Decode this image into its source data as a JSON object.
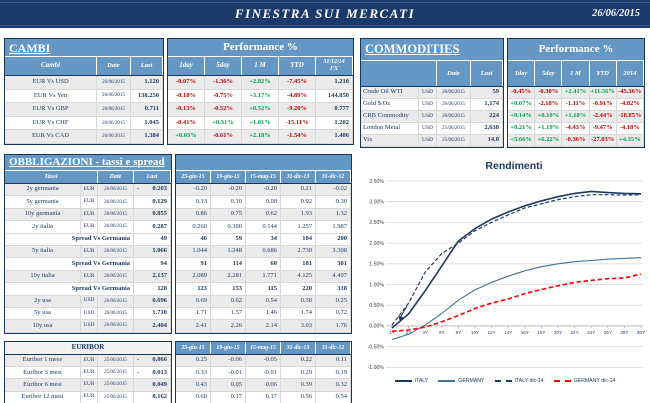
{
  "header": {
    "title": "FINESTRA SUI MERCATI",
    "date": "26/06/2015"
  },
  "colors": {
    "bar_navy": "#1B3A6B",
    "header_blue": "#6497C4",
    "positive": "#00A14E",
    "negative": "#C00000",
    "text_navy": "#1F3864"
  },
  "cambi": {
    "title": "CAMBI",
    "performance_title": "Performance  %",
    "columns": [
      "Cambi",
      "Date",
      "Last",
      "1day",
      "5day",
      "1 M",
      "YTD",
      "31/12/14\nFX"
    ],
    "rows": [
      {
        "name": "EUR Vs USD",
        "date": "26/06/2015",
        "last": "1.120",
        "perf": [
          "-0.07%",
          "-1.36%",
          "+2.82%",
          "-7.45%"
        ],
        "fx": "1.210"
      },
      {
        "name": "EUR Vs Yen",
        "date": "26/06/2015",
        "last": "138.250",
        "perf": [
          "-0.18%",
          "-0.75%",
          "+3.17%",
          "-4.89%"
        ],
        "fx": "144.850"
      },
      {
        "name": "EUR Vs GBP",
        "date": "26/06/2015",
        "last": "0.711",
        "perf": [
          "-0.13%",
          "-0.52%",
          "+0.52%",
          "-9.20%"
        ],
        "fx": "0.777"
      },
      {
        "name": "EUR Vs CHF",
        "date": "26/06/2015",
        "last": "1.045",
        "perf": [
          "-0.41%",
          "+0.31%",
          "+1.01%",
          "-15.11%"
        ],
        "fx": "1.202"
      },
      {
        "name": "EUR Vs CAD",
        "date": "26/06/2015",
        "last": "1.384",
        "perf": [
          "+0.03%",
          "-0.61%",
          "+2.18%",
          "-1.54%"
        ],
        "fx": "1.406"
      }
    ]
  },
  "commodities": {
    "title": "COMMODITIES",
    "performance_title": "Performance  %",
    "columns": [
      "",
      "Date",
      "Last",
      "1day",
      "5day",
      "1 M",
      "YTD",
      "2014"
    ],
    "rows": [
      {
        "name": "Crude Oil WTI",
        "ccy": "USD",
        "date": "26/06/2015",
        "last": "59",
        "perf": [
          "-0.45%",
          "-0.30%",
          "+2.41%",
          "+11.56%",
          "-45.36%"
        ]
      },
      {
        "name": "Gold $/Oz",
        "ccy": "USD",
        "date": "26/06/2015",
        "last": "1,174",
        "perf": [
          "+0.07%",
          "-2.18%",
          "-1.11%",
          "-0.91%",
          "-4.82%"
        ]
      },
      {
        "name": "CRB Commodity",
        "ccy": "USD",
        "date": "26/06/2015",
        "last": "224",
        "perf": [
          "+0.14%",
          "+0.10%",
          "+1.18%",
          "-2.44%",
          "-18.85%"
        ]
      },
      {
        "name": "London Metal",
        "ccy": "USD",
        "date": "25/06/2015",
        "last": "2,638",
        "perf": [
          "+0.21%",
          "+1.19%",
          "-4.43%",
          "-9.47%",
          "-4.18%"
        ]
      },
      {
        "name": "Vix",
        "ccy": "USD",
        "date": "25/06/2015",
        "last": "14.0",
        "perf": [
          "+5.66%",
          "+6.22%",
          "-0.36%",
          "-27.03%",
          "+4.35%"
        ]
      }
    ]
  },
  "bonds": {
    "title": "OBBLIGAZIONI - tassi e spread",
    "columns": [
      "Tassi",
      "Date",
      "Last",
      "25-giu-15",
      "19-giu-15",
      "15-mag-15",
      "31-dic-13",
      "31-dic-12"
    ],
    "rows": [
      {
        "type": "yield",
        "name": "2y germania",
        "ccy": "EUR",
        "date": "26/06/2015",
        "last": "-0.203",
        "values": [
          "-0.20",
          "-0.20",
          "-0.20",
          "0.21",
          "-0.02"
        ]
      },
      {
        "type": "yield",
        "name": "5y germania",
        "ccy": "EUR",
        "date": "26/06/2015",
        "last": "0.129",
        "values": [
          "0.13",
          "0.10",
          "0.08",
          "0.92",
          "0.30"
        ]
      },
      {
        "type": "yield",
        "name": "10y germania",
        "ccy": "EUR",
        "date": "26/06/2015",
        "last": "0.855",
        "values": [
          "0.86",
          "0.75",
          "0.62",
          "1.93",
          "1.32"
        ]
      },
      {
        "type": "yield",
        "name": "2y italia",
        "ccy": "EUR",
        "date": "26/06/2015",
        "last": "0.287",
        "values": [
          "0.260",
          "0.390",
          "0.144",
          "1.257",
          "1.987"
        ]
      },
      {
        "type": "spread",
        "name": "Spread Vs Germania",
        "last": "49",
        "values": [
          "46",
          "59",
          "34",
          "104",
          "200"
        ]
      },
      {
        "type": "yield",
        "name": "5y italia",
        "ccy": "EUR",
        "date": "26/06/2015",
        "last": "1.066",
        "values": [
          "1.044",
          "1.248",
          "0.686",
          "2.730",
          "3.308"
        ]
      },
      {
        "type": "spread",
        "name": "Spread Vs Germania",
        "last": "94",
        "values": [
          "91",
          "114",
          "60",
          "181",
          "301"
        ]
      },
      {
        "type": "yield",
        "name": "10y italia",
        "ccy": "EUR",
        "date": "26/06/2015",
        "last": "2.137",
        "values": [
          "2.089",
          "2.281",
          "1.771",
          "4.125",
          "4.497"
        ]
      },
      {
        "type": "spread",
        "name": "Spread Vs Germania",
        "last": "128",
        "values": [
          "123",
          "153",
          "115",
          "220",
          "318"
        ]
      },
      {
        "type": "yield",
        "name": "2y usa",
        "ccy": "USD",
        "date": "26/06/2015",
        "last": "0.696",
        "values": [
          "0.69",
          "0.62",
          "0.54",
          "0.38",
          "0.25"
        ]
      },
      {
        "type": "yield",
        "name": "5y usa",
        "ccy": "USD",
        "date": "26/06/2015",
        "last": "1.710",
        "values": [
          "1.71",
          "1.57",
          "1.46",
          "1.74",
          "0.72"
        ]
      },
      {
        "type": "yield",
        "name": "10y usa",
        "ccy": "USD",
        "date": "26/06/2015",
        "last": "2.404",
        "values": [
          "2.41",
          "2.26",
          "2.14",
          "3.03",
          "1.76"
        ]
      }
    ]
  },
  "euribor": {
    "title": "EURIBOR",
    "columns": [
      "25-giu-15",
      "19-giu-15",
      "15-mag-15",
      "31-dic-13",
      "31-dic-12"
    ],
    "rows": [
      {
        "name": "Euribor 1 mese",
        "ccy": "EUR",
        "date": "25/06/2015",
        "last": "-0.066",
        "values": [
          "0.25",
          "-0.06",
          "-0.05",
          "0.22",
          "0.11"
        ]
      },
      {
        "name": "Euribor 3 mesi",
        "ccy": "EUR",
        "date": "25/06/2015",
        "last": "-0.013",
        "values": [
          "0.33",
          "-0.01",
          "-0.01",
          "0.29",
          "0.19"
        ]
      },
      {
        "name": "Euribor 6 mesi",
        "ccy": "EUR",
        "date": "25/06/2015",
        "last": "0.049",
        "values": [
          "0.43",
          "0.05",
          "0.06",
          "0.39",
          "0.32"
        ]
      },
      {
        "name": "Euribor 12 mesi",
        "ccy": "EUR",
        "date": "25/06/2015",
        "last": "0.162",
        "values": [
          "0.60",
          "0.17",
          "0.17",
          "0.56",
          "0.54"
        ]
      }
    ]
  },
  "chart_data": {
    "type": "line",
    "title": "Rendimenti",
    "x_labels": [
      "1Y",
      "2Y",
      "4Y",
      "6Y",
      "8Y",
      "10Y",
      "12Y",
      "14Y",
      "16Y",
      "18Y",
      "20Y",
      "22Y",
      "24Y",
      "26Y",
      "28Y",
      "30Y"
    ],
    "ylim": [
      -1.0,
      3.5
    ],
    "ytick_step": 0.5,
    "ytick_format": "percent",
    "grid": true,
    "legend_position": "bottom",
    "series": [
      {
        "name": "ITALY",
        "color": "#1F3864",
        "dash": "solid",
        "values": [
          -0.05,
          0.29,
          0.85,
          1.45,
          2.05,
          2.35,
          2.58,
          2.75,
          2.9,
          3.02,
          3.12,
          3.2,
          3.25,
          3.22,
          3.2,
          3.19
        ]
      },
      {
        "name": "GERMANY",
        "color": "#41719C",
        "dash": "solid",
        "values": [
          -0.33,
          -0.2,
          0.02,
          0.3,
          0.62,
          0.87,
          1.05,
          1.2,
          1.33,
          1.43,
          1.5,
          1.55,
          1.58,
          1.61,
          1.63,
          1.65
        ]
      },
      {
        "name": "ITALY dic-14",
        "color": "#1F3864",
        "dash": "dashed",
        "values": [
          0.02,
          0.55,
          1.3,
          1.75,
          2.0,
          2.3,
          2.5,
          2.68,
          2.85,
          2.95,
          3.05,
          3.12,
          3.17,
          3.17,
          3.16,
          3.17
        ]
      },
      {
        "name": "GERMANY dic-14",
        "color": "#FF0000",
        "dash": "dashed",
        "values": [
          -0.13,
          -0.1,
          -0.03,
          0.1,
          0.25,
          0.42,
          0.55,
          0.65,
          0.78,
          0.88,
          0.97,
          1.05,
          1.1,
          1.14,
          1.16,
          1.25
        ]
      }
    ]
  }
}
